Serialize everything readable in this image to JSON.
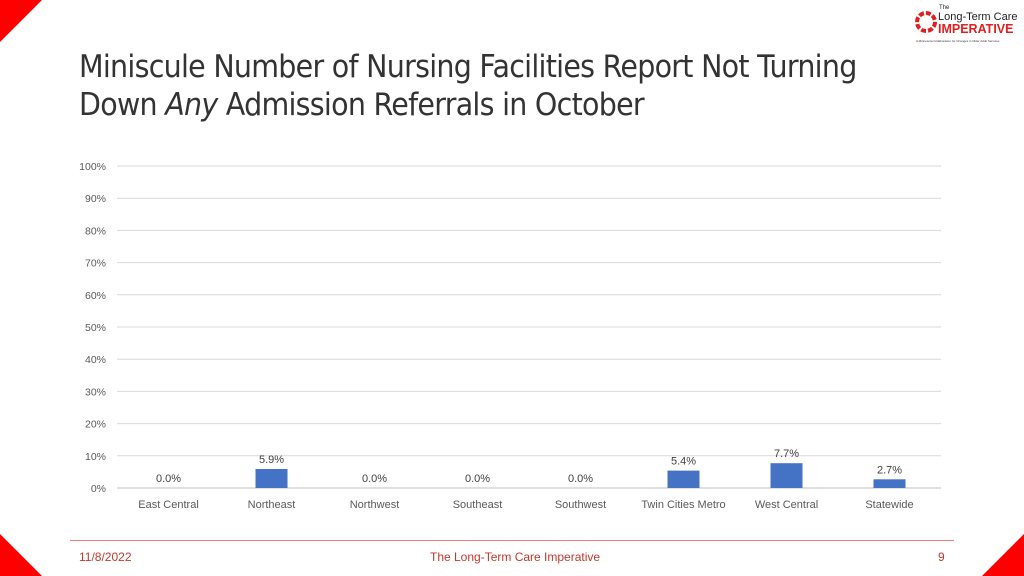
{
  "title": {
    "part1": "Miniscule Number of Nursing Facilities Report Not Turning",
    "part2_prefix": "Down ",
    "part2_emphasis": "Any",
    "part2_suffix": " Admission Referrals in October"
  },
  "logo": {
    "the": "The",
    "line1": "Long-Term Care",
    "line2": "IMPERATIVE",
    "tagline": "A Minnesota Collaboration for Changes in Older Adult Services"
  },
  "footer": {
    "date": "11/8/2022",
    "center": "The Long-Term Care Imperative",
    "page": "9"
  },
  "colors": {
    "bar": "#4472c4",
    "accent": "#ff0000",
    "footer_text": "#c0392b"
  },
  "chart_data": {
    "type": "bar",
    "categories": [
      "East Central",
      "Northeast",
      "Northwest",
      "Southeast",
      "Southwest",
      "Twin Cities Metro",
      "West Central",
      "Statewide"
    ],
    "values": [
      0.0,
      5.9,
      0.0,
      0.0,
      0.0,
      5.4,
      7.7,
      2.7
    ],
    "data_labels": [
      "0.0%",
      "5.9%",
      "0.0%",
      "0.0%",
      "0.0%",
      "5.4%",
      "7.7%",
      "2.7%"
    ],
    "yticks": [
      "0%",
      "10%",
      "20%",
      "30%",
      "40%",
      "50%",
      "60%",
      "70%",
      "80%",
      "90%",
      "100%"
    ],
    "ylim": [
      0,
      100
    ],
    "grid": true
  }
}
